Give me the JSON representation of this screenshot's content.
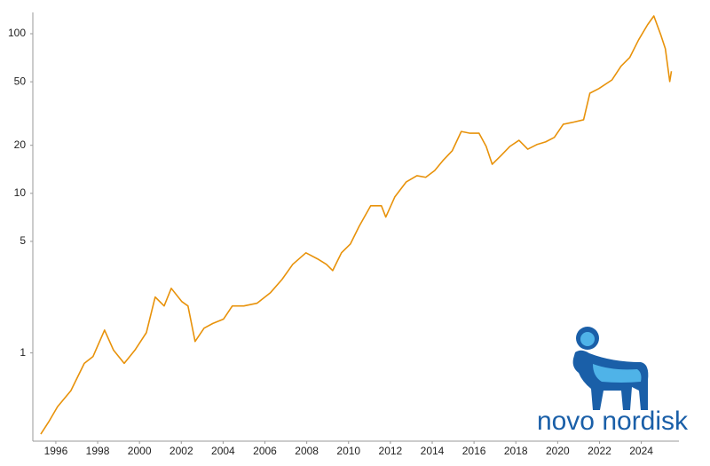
{
  "chart_data": {
    "type": "line",
    "y_scale": "log",
    "color": "#e8920a",
    "grid": false,
    "x": [
      1995.28,
      1995.66,
      1996.08,
      1996.72,
      1997.36,
      1997.78,
      1998.33,
      1998.76,
      1999.27,
      1999.78,
      2000.33,
      2000.75,
      2001.18,
      2001.52,
      2002.02,
      2002.32,
      2002.66,
      2003.09,
      2003.51,
      2004.02,
      2004.44,
      2004.99,
      2005.63,
      2006.27,
      2006.82,
      2007.33,
      2007.96,
      2008.52,
      2008.94,
      2009.24,
      2009.66,
      2010.09,
      2010.51,
      2011.06,
      2011.57,
      2011.78,
      2012.21,
      2012.76,
      2013.27,
      2013.69,
      2014.12,
      2014.54,
      2014.96,
      2015.39,
      2015.81,
      2016.24,
      2016.58,
      2016.87,
      2017.3,
      2017.72,
      2018.15,
      2018.57,
      2019.0,
      2019.42,
      2019.84,
      2020.27,
      2020.69,
      2021.24,
      2021.54,
      2021.97,
      2022.6,
      2023.03,
      2023.45,
      2023.87,
      2024.3,
      2024.6,
      2024.94,
      2025.15,
      2025.36,
      2025.44
    ],
    "values": [
      0.31,
      0.37,
      0.46,
      0.58,
      0.86,
      0.95,
      1.39,
      1.04,
      0.86,
      1.04,
      1.34,
      2.24,
      1.97,
      2.54,
      2.1,
      1.97,
      1.18,
      1.43,
      1.53,
      1.63,
      1.97,
      1.97,
      2.05,
      2.39,
      2.89,
      3.59,
      4.24,
      3.88,
      3.59,
      3.28,
      4.24,
      4.82,
      6.23,
      8.36,
      8.36,
      7.1,
      9.49,
      11.8,
      12.9,
      12.6,
      13.9,
      16.2,
      18.5,
      24.4,
      23.8,
      23.8,
      19.7,
      15.2,
      17.3,
      19.7,
      21.5,
      18.9,
      20.2,
      21.0,
      22.4,
      27.1,
      27.8,
      28.9,
      42.4,
      45.3,
      51.4,
      62.6,
      71.1,
      91.5,
      113.9,
      129.2,
      97.7,
      80.6,
      50.2,
      58.2
    ],
    "xlim": [
      1994.9,
      2025.8
    ],
    "xticks": [
      1996,
      1998,
      2000,
      2002,
      2004,
      2006,
      2008,
      2010,
      2012,
      2014,
      2016,
      2018,
      2020,
      2022,
      2024
    ],
    "ylim": [
      0.28,
      136
    ],
    "yticks": [
      1,
      5,
      10,
      20,
      50,
      100
    ]
  },
  "logo": {
    "text": "novo nordisk"
  }
}
